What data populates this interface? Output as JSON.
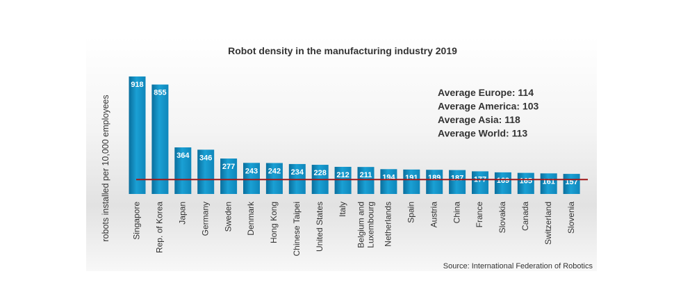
{
  "chart_data": {
    "type": "bar",
    "title": "Robot density in the manufacturing industry 2019",
    "ylabel": "robots installed per 10,000 employees",
    "xlabel": "",
    "categories": [
      "Singapore",
      "Rep. of Korea",
      "Japan",
      "Germany",
      "Sweden",
      "Denmark",
      "Hong Kong",
      "Chinese Taipei",
      "United States",
      "Italy",
      "Belgium and Luxembourg",
      "Netherlands",
      "Spain",
      "Austria",
      "China",
      "France",
      "Slovakia",
      "Canada",
      "Switzerland",
      "Slovenia"
    ],
    "values": [
      918,
      855,
      364,
      346,
      277,
      243,
      242,
      234,
      228,
      212,
      211,
      194,
      191,
      189,
      187,
      177,
      169,
      165,
      161,
      157
    ],
    "reference_line": {
      "value": 113
    },
    "annotations": [
      "Average Europe: 114",
      "Average America: 103",
      "Average Asia: 118",
      "Average World: 113"
    ],
    "source": "Source: International Federation of Robotics",
    "colors": {
      "bar": "#1a9bd0",
      "bar_dark": "#0d78a8",
      "line": "#a01818",
      "label_text": "#ffffff"
    }
  }
}
